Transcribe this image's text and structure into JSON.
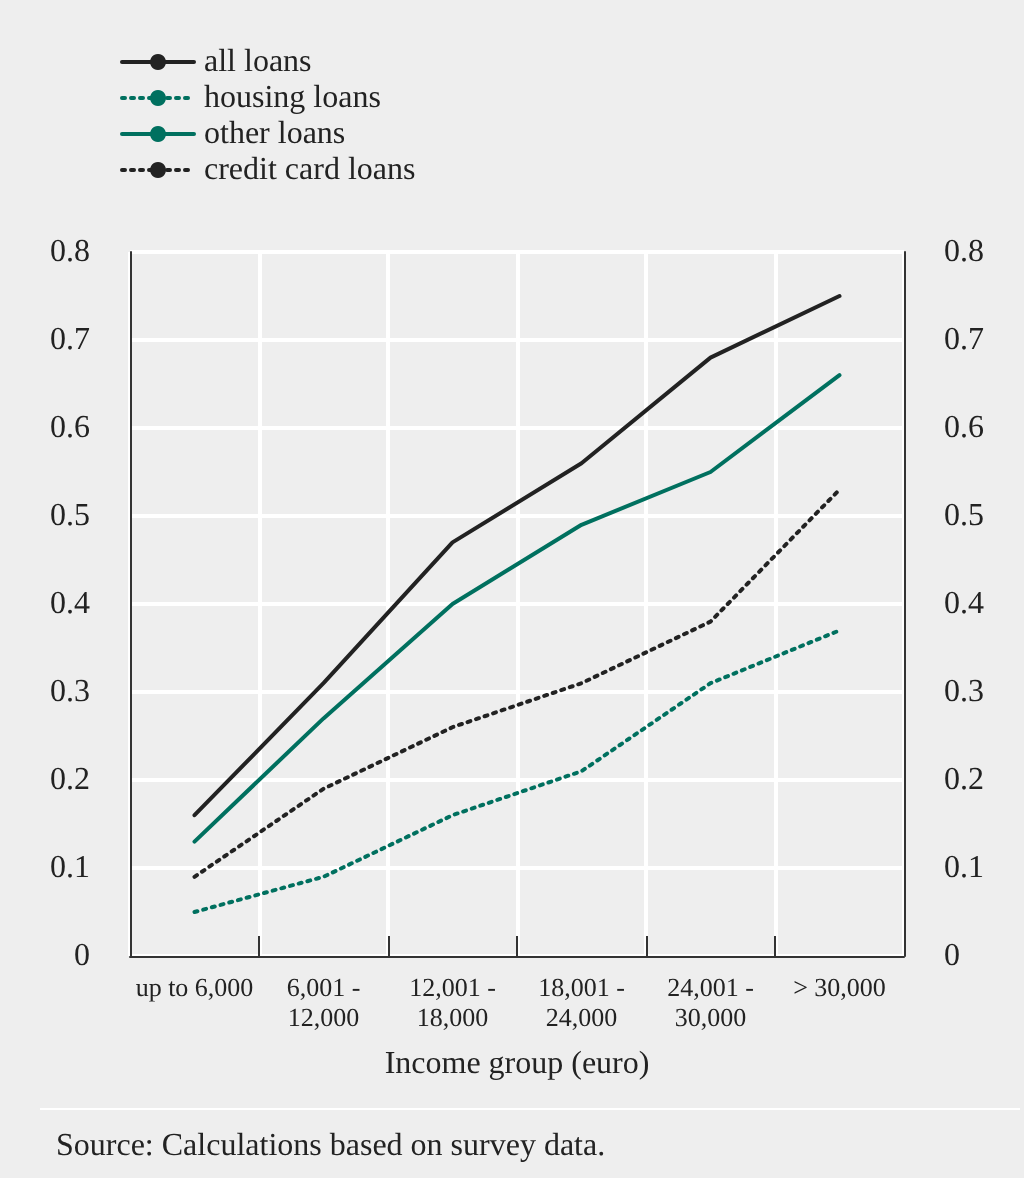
{
  "chart_data": {
    "type": "line",
    "xlabel": "Income group (euro)",
    "categories": [
      "up to 6,000",
      "6,001 - 12,000",
      "12,001 - 18,000",
      "18,001 - 24,000",
      "24,001 - 30,000",
      "> 30,000"
    ],
    "series": [
      {
        "name": "all loans",
        "color": "#222222",
        "line_style": "solid",
        "values": [
          0.16,
          0.31,
          0.47,
          0.56,
          0.68,
          0.75
        ]
      },
      {
        "name": "housing loans",
        "color": "#00705f",
        "line_style": "dotted",
        "values": [
          0.05,
          0.09,
          0.16,
          0.21,
          0.31,
          0.37
        ]
      },
      {
        "name": "other loans",
        "color": "#00705f",
        "line_style": "solid",
        "values": [
          0.13,
          0.27,
          0.4,
          0.49,
          0.55,
          0.66
        ]
      },
      {
        "name": "credit card loans",
        "color": "#222222",
        "line_style": "dotted",
        "values": [
          0.09,
          0.19,
          0.26,
          0.31,
          0.38,
          0.53
        ]
      }
    ],
    "ylim": [
      0,
      0.8
    ],
    "yticks": [
      0,
      0.1,
      0.2,
      0.3,
      0.4,
      0.5,
      0.6,
      0.7,
      0.8
    ],
    "y2lim": [
      0,
      0.8
    ],
    "y2ticks": [
      0,
      0.1,
      0.2,
      0.3,
      0.4,
      0.5,
      0.6,
      0.7,
      0.8
    ],
    "grid": true,
    "legend": "top left",
    "marker": "none",
    "annotations": [
      "Source: Calculations based on survey data."
    ]
  }
}
